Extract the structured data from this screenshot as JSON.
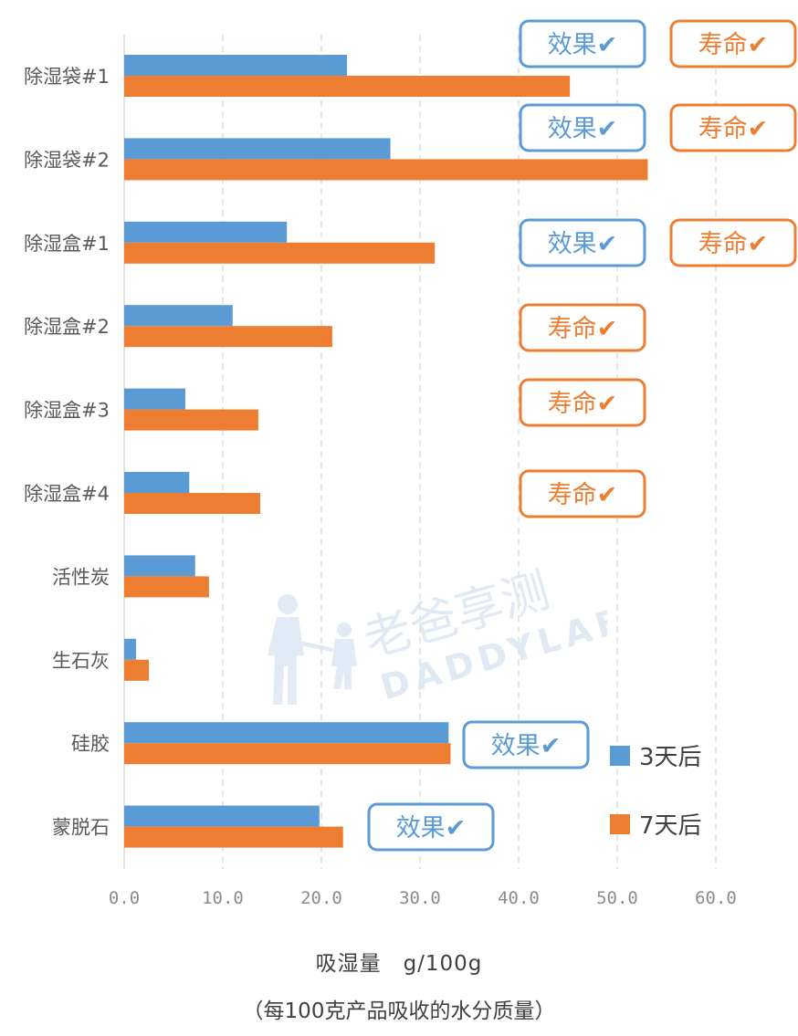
{
  "chart_data": {
    "type": "bar",
    "orientation": "horizontal",
    "categories": [
      "除湿袋#1",
      "除湿袋#2",
      "除湿盒#1",
      "除湿盒#2",
      "除湿盒#3",
      "除湿盒#4",
      "活性炭",
      "生石灰",
      "硅胶",
      "蒙脱石"
    ],
    "series": [
      {
        "name": "3天后",
        "color": "#5b9bd5",
        "values": [
          22.6,
          27.0,
          16.5,
          11.0,
          6.2,
          6.6,
          7.2,
          1.2,
          32.9,
          19.8
        ]
      },
      {
        "name": "7天后",
        "color": "#ed7d31",
        "values": [
          45.2,
          53.1,
          31.5,
          21.1,
          13.6,
          13.8,
          8.6,
          2.5,
          33.1,
          22.2
        ]
      }
    ],
    "xlim": [
      0,
      60
    ],
    "xticks": [
      "0.0",
      "10.0",
      "20.0",
      "30.0",
      "40.0",
      "50.0",
      "60.0"
    ],
    "xtick_values": [
      0,
      10,
      20,
      30,
      40,
      50,
      60
    ],
    "grid": "vertical-dashed",
    "legend_position": "bottom-right",
    "xlabel": "吸湿量　g/100g",
    "xlabel_note": "（每100克产品吸收的水分质量）",
    "annotations": [
      {
        "category": "除湿袋#1",
        "badges": [
          "效果✔",
          "寿命✔"
        ]
      },
      {
        "category": "除湿袋#2",
        "badges": [
          "效果✔",
          "寿命✔"
        ]
      },
      {
        "category": "除湿盒#1",
        "badges": [
          "效果✔",
          "寿命✔"
        ]
      },
      {
        "category": "除湿盒#2",
        "badges": [
          "寿命✔"
        ]
      },
      {
        "category": "除湿盒#3",
        "badges": [
          "寿命✔"
        ]
      },
      {
        "category": "除湿盒#4",
        "badges": [
          "寿命✔"
        ]
      },
      {
        "category": "硅胶",
        "badges": [
          "效果✔"
        ]
      },
      {
        "category": "蒙脱石",
        "badges": [
          "效果✔"
        ]
      }
    ],
    "badge_colors": {
      "效果": "#5b9bd5",
      "寿命": "#ed7d31"
    }
  },
  "watermark": {
    "text_cn": "老爸享测",
    "text_en": "DADDYLAB"
  }
}
